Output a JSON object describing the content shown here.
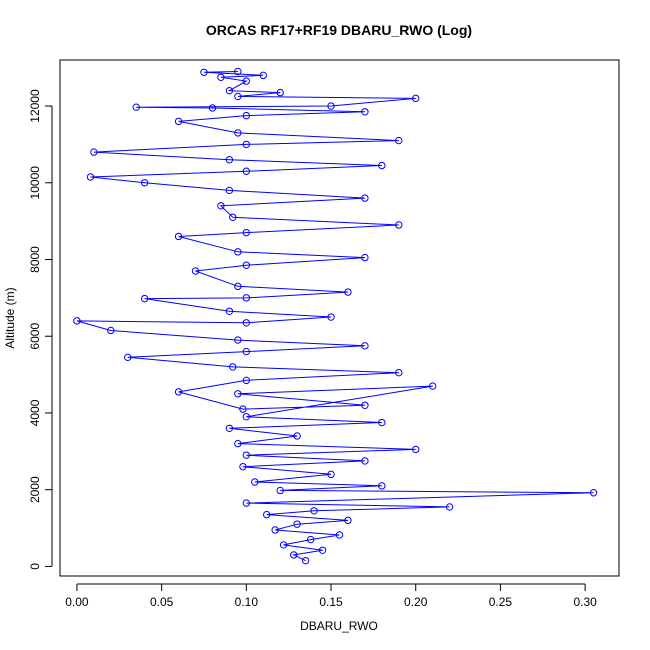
{
  "chart_data": {
    "type": "scatter",
    "title": "ORCAS RF17+RF19 DBARU_RWO (Log)",
    "xlabel": "DBARU_RWO",
    "ylabel": "Altitude (m)",
    "xlim": [
      -0.01,
      0.32
    ],
    "ylim": [
      -250,
      13200
    ],
    "xticks": [
      0.0,
      0.05,
      0.1,
      0.15,
      0.2,
      0.25,
      0.3
    ],
    "yticks": [
      0,
      2000,
      4000,
      6000,
      8000,
      10000,
      12000
    ],
    "xtick_labels": [
      "0.00",
      "0.05",
      "0.10",
      "0.15",
      "0.20",
      "0.25",
      "0.30"
    ],
    "ytick_labels": [
      "0",
      "2000",
      "4000",
      "6000",
      "8000",
      "10000",
      "12000"
    ],
    "grid": false,
    "series": [
      {
        "marker": "open-circle",
        "connected": true,
        "color": "#0000ff",
        "points": [
          [
            0.135,
            150
          ],
          [
            0.128,
            300
          ],
          [
            0.145,
            420
          ],
          [
            0.122,
            560
          ],
          [
            0.138,
            700
          ],
          [
            0.155,
            820
          ],
          [
            0.117,
            950
          ],
          [
            0.13,
            1100
          ],
          [
            0.16,
            1200
          ],
          [
            0.112,
            1350
          ],
          [
            0.14,
            1450
          ],
          [
            0.22,
            1550
          ],
          [
            0.1,
            1650
          ],
          [
            0.305,
            1920
          ],
          [
            0.12,
            1980
          ],
          [
            0.18,
            2100
          ],
          [
            0.105,
            2200
          ],
          [
            0.15,
            2400
          ],
          [
            0.098,
            2600
          ],
          [
            0.17,
            2750
          ],
          [
            0.1,
            2900
          ],
          [
            0.2,
            3050
          ],
          [
            0.095,
            3200
          ],
          [
            0.13,
            3400
          ],
          [
            0.09,
            3600
          ],
          [
            0.18,
            3750
          ],
          [
            0.1,
            3900
          ],
          [
            0.21,
            4700
          ],
          [
            0.095,
            4500
          ],
          [
            0.17,
            4200
          ],
          [
            0.098,
            4100
          ],
          [
            0.06,
            4550
          ],
          [
            0.1,
            4850
          ],
          [
            0.19,
            5050
          ],
          [
            0.092,
            5200
          ],
          [
            0.03,
            5450
          ],
          [
            0.1,
            5600
          ],
          [
            0.17,
            5750
          ],
          [
            0.095,
            5900
          ],
          [
            0.02,
            6150
          ],
          [
            0.0,
            6400
          ],
          [
            0.1,
            6350
          ],
          [
            0.15,
            6500
          ],
          [
            0.09,
            6650
          ],
          [
            0.04,
            6980
          ],
          [
            0.1,
            7000
          ],
          [
            0.16,
            7150
          ],
          [
            0.095,
            7300
          ],
          [
            0.07,
            7700
          ],
          [
            0.1,
            7850
          ],
          [
            0.17,
            8050
          ],
          [
            0.095,
            8200
          ],
          [
            0.06,
            8600
          ],
          [
            0.1,
            8700
          ],
          [
            0.19,
            8900
          ],
          [
            0.092,
            9100
          ],
          [
            0.085,
            9400
          ],
          [
            0.17,
            9600
          ],
          [
            0.09,
            9800
          ],
          [
            0.04,
            10000
          ],
          [
            0.008,
            10150
          ],
          [
            0.1,
            10300
          ],
          [
            0.18,
            10450
          ],
          [
            0.09,
            10600
          ],
          [
            0.01,
            10800
          ],
          [
            0.1,
            11000
          ],
          [
            0.19,
            11100
          ],
          [
            0.095,
            11300
          ],
          [
            0.06,
            11600
          ],
          [
            0.1,
            11750
          ],
          [
            0.17,
            11850
          ],
          [
            0.08,
            11950
          ],
          [
            0.035,
            11970
          ],
          [
            0.15,
            12000
          ],
          [
            0.2,
            12200
          ],
          [
            0.095,
            12250
          ],
          [
            0.12,
            12350
          ],
          [
            0.09,
            12400
          ],
          [
            0.1,
            12650
          ],
          [
            0.085,
            12750
          ],
          [
            0.11,
            12800
          ],
          [
            0.075,
            12880
          ],
          [
            0.095,
            12900
          ]
        ]
      }
    ]
  }
}
